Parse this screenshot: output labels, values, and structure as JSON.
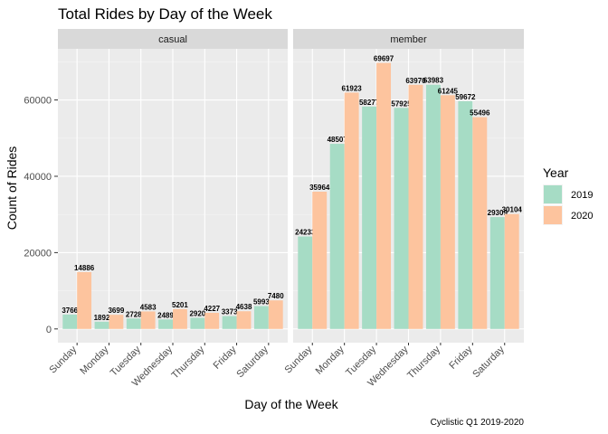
{
  "chart_data": {
    "type": "bar",
    "title": "Total Rides by Day of the Week",
    "xlabel": "Day of the Week",
    "ylabel": "Count of Rides",
    "caption": "Cyclistic Q1 2019-2020",
    "ylim": [
      0,
      72000
    ],
    "yticks": [
      0,
      20000,
      40000,
      60000
    ],
    "ytick_labels": [
      "0",
      "20000",
      "40000",
      "60000"
    ],
    "categories": [
      "Sunday",
      "Monday",
      "Tuesday",
      "Wednesday",
      "Thursday",
      "Friday",
      "Saturday"
    ],
    "legend": {
      "title": "Year",
      "position": "right"
    },
    "panels": [
      {
        "name": "casual",
        "series": [
          {
            "name": "2019",
            "color": "#a6dcc5",
            "values": [
              3766,
              1892,
              2728,
              2489,
              2920,
              3373,
              5993
            ]
          },
          {
            "name": "2020",
            "color": "#fdc49e",
            "values": [
              14886,
              3699,
              4583,
              5201,
              4227,
              4638,
              7480
            ]
          }
        ]
      },
      {
        "name": "member",
        "series": [
          {
            "name": "2019",
            "color": "#a6dcc5",
            "values": [
              24233,
              48507,
              58277,
              57925,
              63983,
              59672,
              29309
            ]
          },
          {
            "name": "2020",
            "color": "#fdc49e",
            "values": [
              35964,
              61923,
              69697,
              63970,
              61245,
              55496,
              30104
            ]
          }
        ]
      }
    ]
  }
}
